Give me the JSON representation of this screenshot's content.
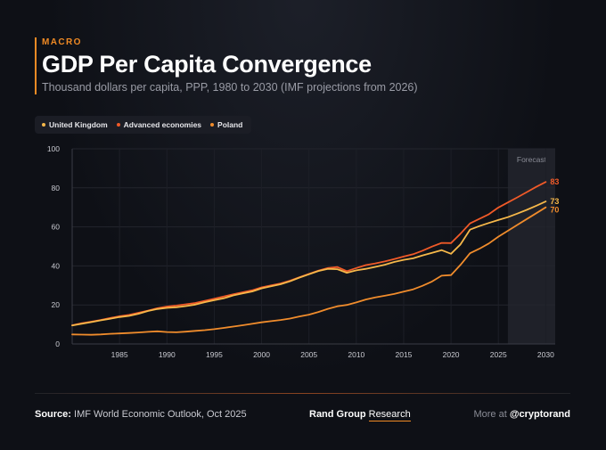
{
  "header": {
    "kicker": "MACRO",
    "title": "GDP Per Capita Convergence",
    "subtitle": "Thousand dollars per capita, PPP, 1980 to 2030 (IMF projections from 2026)"
  },
  "colors": {
    "uk": "#f6b84a",
    "advanced": "#f05a28",
    "poland": "#f08c2c"
  },
  "footer": {
    "source_label": "Source:",
    "source_text": "IMF World Economic Outlook, Oct 2025",
    "brand_main": "Rand Group",
    "brand_sub": "Research",
    "more_label": "More at",
    "handle": "@cryptorand"
  },
  "chart_data": {
    "type": "line",
    "title": "GDP Per Capita Convergence",
    "xlim": [
      1980,
      2031
    ],
    "ylim": [
      0,
      100
    ],
    "x_ticks": [
      1985,
      1990,
      1995,
      2000,
      2005,
      2010,
      2015,
      2020,
      2025,
      2030
    ],
    "y_ticks": [
      0,
      20,
      40,
      60,
      80,
      100
    ],
    "grid": true,
    "legend_position": "top-left",
    "forecast": {
      "from": 2026,
      "to": 2031,
      "label": "Forecast"
    },
    "x": [
      1980,
      1981,
      1982,
      1983,
      1984,
      1985,
      1986,
      1987,
      1988,
      1989,
      1990,
      1991,
      1992,
      1993,
      1994,
      1995,
      1996,
      1997,
      1998,
      1999,
      2000,
      2001,
      2002,
      2003,
      2004,
      2005,
      2006,
      2007,
      2008,
      2009,
      2010,
      2011,
      2012,
      2013,
      2014,
      2015,
      2016,
      2017,
      2018,
      2019,
      2020,
      2021,
      2022,
      2023,
      2024,
      2025,
      2026,
      2027,
      2028,
      2029,
      2030
    ],
    "series": [
      {
        "name": "United Kingdom",
        "key": "uk",
        "end_label": "73",
        "values": [
          9.5,
          10.3,
          11.2,
          12.1,
          12.9,
          13.8,
          14.4,
          15.5,
          16.9,
          17.9,
          18.5,
          18.8,
          19.4,
          20.2,
          21.4,
          22.4,
          23.4,
          24.9,
          25.9,
          26.9,
          28.5,
          29.6,
          30.6,
          32.1,
          34.0,
          35.7,
          37.4,
          38.5,
          38.3,
          36.5,
          37.7,
          38.5,
          39.5,
          40.6,
          42.0,
          43.1,
          43.9,
          45.4,
          46.7,
          48.1,
          46.2,
          51.0,
          58.6,
          60.4,
          62.0,
          63.5,
          65.0,
          66.8,
          68.7,
          70.8,
          73.0
        ]
      },
      {
        "name": "Advanced economies",
        "key": "advanced",
        "end_label": "83",
        "values": [
          9.6,
          10.6,
          11.4,
          12.3,
          13.3,
          14.2,
          14.9,
          16.0,
          17.1,
          18.3,
          19.2,
          19.7,
          20.3,
          21.0,
          22.1,
          23.2,
          24.3,
          25.5,
          26.5,
          27.5,
          29.0,
          30.0,
          31.0,
          32.4,
          34.2,
          35.9,
          37.6,
          38.9,
          39.4,
          37.3,
          38.9,
          40.4,
          41.3,
          42.3,
          43.5,
          44.8,
          46.0,
          47.8,
          49.9,
          51.8,
          51.7,
          56.5,
          61.8,
          64.1,
          66.5,
          69.9,
          72.5,
          75.1,
          77.8,
          80.5,
          83.0
        ]
      },
      {
        "name": "Poland",
        "key": "poland",
        "end_label": "70",
        "values": [
          4.9,
          4.8,
          4.7,
          4.9,
          5.2,
          5.4,
          5.6,
          5.9,
          6.2,
          6.5,
          6.1,
          6.0,
          6.3,
          6.7,
          7.1,
          7.6,
          8.2,
          8.9,
          9.6,
          10.3,
          11.1,
          11.7,
          12.3,
          13.0,
          14.1,
          15.0,
          16.4,
          18.0,
          19.3,
          20.0,
          21.3,
          22.8,
          23.9,
          24.7,
          25.6,
          26.8,
          28.0,
          29.8,
          32.0,
          35.0,
          35.3,
          40.5,
          46.5,
          48.8,
          51.5,
          55.0,
          58.0,
          61.0,
          64.0,
          67.0,
          70.0
        ]
      }
    ]
  }
}
